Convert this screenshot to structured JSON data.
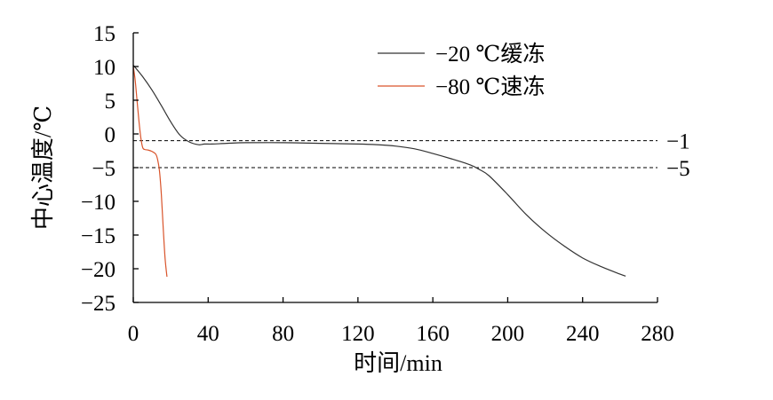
{
  "chart_data": {
    "type": "line",
    "xlabel": "时间/min",
    "ylabel": "中心温度/℃",
    "xlim": [
      0,
      280
    ],
    "ylim": [
      -25,
      15
    ],
    "x_ticks": [
      {
        "value": 0,
        "label": "0"
      },
      {
        "value": 40,
        "label": "40"
      },
      {
        "value": 80,
        "label": "80"
      },
      {
        "value": 120,
        "label": "120"
      },
      {
        "value": 160,
        "label": "160"
      },
      {
        "value": 200,
        "label": "200"
      },
      {
        "value": 240,
        "label": "240"
      },
      {
        "value": 280,
        "label": "280"
      }
    ],
    "y_ticks": [
      {
        "value": 15,
        "label": "15"
      },
      {
        "value": 10,
        "label": "10"
      },
      {
        "value": 5,
        "label": "5"
      },
      {
        "value": 0,
        "label": "0"
      },
      {
        "value": -5,
        "label": "−5"
      },
      {
        "value": -10,
        "label": "−10"
      },
      {
        "value": -15,
        "label": "−15"
      },
      {
        "value": -20,
        "label": "−20"
      },
      {
        "value": -25,
        "label": "−25"
      }
    ],
    "grid": false,
    "legend": {
      "position": "top-right"
    },
    "series": [
      {
        "name": "−20 ℃缓冻",
        "color": "#333333",
        "x": [
          0,
          5,
          10,
          15,
          20,
          25,
          30,
          35,
          38,
          42,
          50,
          60,
          80,
          100,
          120,
          130,
          140,
          150,
          160,
          170,
          180,
          185,
          190,
          200,
          210,
          220,
          230,
          240,
          250,
          260,
          263
        ],
        "y": [
          10.2,
          8.5,
          6.5,
          4.2,
          1.8,
          -0.2,
          -1.2,
          -1.6,
          -1.5,
          -1.5,
          -1.4,
          -1.3,
          -1.3,
          -1.4,
          -1.5,
          -1.6,
          -1.8,
          -2.2,
          -2.9,
          -3.7,
          -4.6,
          -5.3,
          -6.2,
          -9.0,
          -12.0,
          -14.5,
          -16.6,
          -18.4,
          -19.7,
          -20.8,
          -21.1
        ]
      },
      {
        "name": "−80 ℃速冻",
        "color": "#d9542b",
        "x": [
          0,
          1,
          2,
          3,
          4,
          5,
          6,
          8,
          10,
          12,
          13,
          14,
          15,
          16,
          17,
          18
        ],
        "y": [
          10.0,
          8.0,
          5.0,
          2.0,
          -0.5,
          -2.0,
          -2.3,
          -2.4,
          -2.6,
          -3.0,
          -3.8,
          -5.5,
          -9.0,
          -14.0,
          -18.5,
          -21.2
        ]
      }
    ],
    "reference_lines": [
      {
        "y": -1,
        "label": "−1",
        "style": "dashed"
      },
      {
        "y": -5,
        "label": "−5",
        "style": "dashed"
      }
    ]
  }
}
